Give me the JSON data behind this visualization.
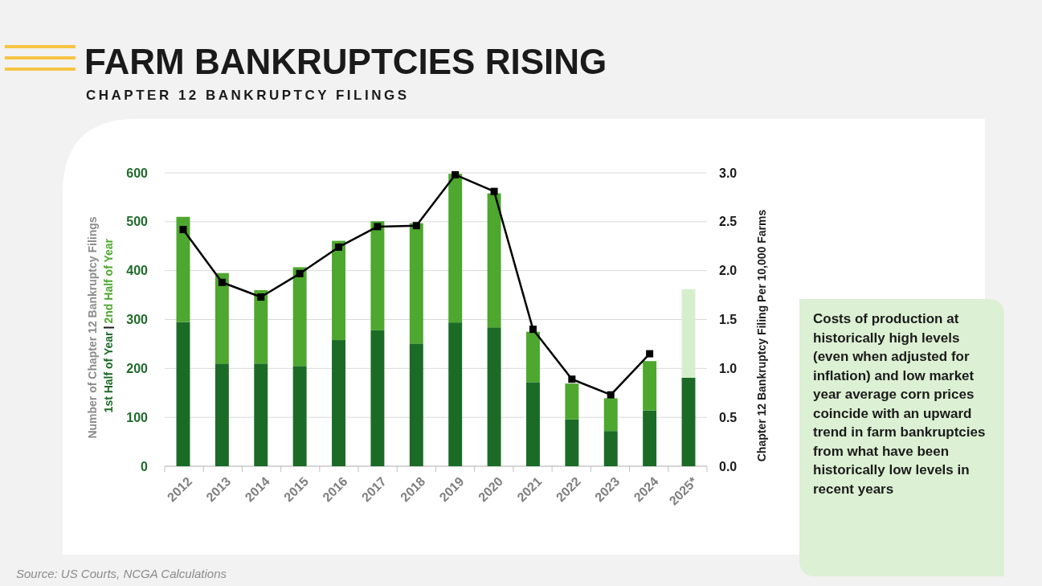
{
  "chart_data": {
    "type": "bar",
    "title": "FARM BANKRUPTCIES RISING",
    "subtitle": "CHAPTER 12 BANKRUPTCY FILINGS",
    "ylabel": "Number of Chapter 12 Bankruptcy Filings",
    "y2label": "Chapter 12 Bankruptcy Filing Per 10,000 Farms",
    "categories": [
      "2012",
      "2013",
      "2014",
      "2015",
      "2016",
      "2017",
      "2018",
      "2019",
      "2020",
      "2021",
      "2022",
      "2023",
      "2024",
      "2025*"
    ],
    "stacked": true,
    "series": [
      {
        "name": "1st Half of Year",
        "color": "#1b6b27",
        "values": [
          295,
          210,
          210,
          205,
          258,
          278,
          251,
          294,
          284,
          172,
          96,
          72,
          114,
          181
        ]
      },
      {
        "name": "2nd Half of Year",
        "color": "#4ea72e",
        "values": [
          215,
          185,
          150,
          202,
          203,
          223,
          246,
          304,
          274,
          103,
          73,
          67,
          101,
          null
        ]
      },
      {
        "color": "#d5efcc",
        "values": [
          null,
          null,
          null,
          null,
          null,
          null,
          null,
          null,
          null,
          null,
          null,
          null,
          null,
          181
        ]
      },
      {
        "type": "line",
        "axis": "y2",
        "color": "#000000",
        "marker": "square",
        "values": [
          2.42,
          1.88,
          1.73,
          1.97,
          2.24,
          2.45,
          2.46,
          2.98,
          2.81,
          1.4,
          0.89,
          0.73,
          1.15,
          null
        ]
      }
    ],
    "ylim": [
      0,
      600
    ],
    "yticks": [
      0,
      100,
      200,
      300,
      400,
      500,
      600
    ],
    "y2lim": [
      0,
      3
    ],
    "y2ticks": [
      {
        "value": 0,
        "label": "0.0"
      },
      {
        "value": 0.5,
        "label": "0.5"
      },
      {
        "value": 1,
        "label": "1.0"
      },
      {
        "value": 1.5,
        "label": "1.5"
      },
      {
        "value": 2,
        "label": "2.0"
      },
      {
        "value": 2.5,
        "label": "2.5"
      },
      {
        "value": 3,
        "label": "3.0"
      }
    ],
    "grid": "y",
    "legend": "left",
    "annotations": [
      "Costs of production at historically high levels (even when adjusted for inflation) and low market year average corn prices coincide with an upward trend in farm bankruptcies from what have been historically low levels in recent years",
      "Source: US Courts, NCGA Calculations"
    ]
  }
}
